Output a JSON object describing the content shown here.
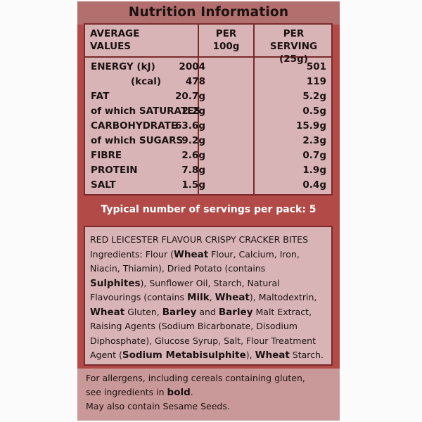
{
  "title": "Nutrition Information",
  "table": {
    "headers": {
      "average_values": [
        "AVERAGE",
        "VALUES"
      ],
      "per_100g": [
        "PER",
        "100g"
      ],
      "per_serving": [
        "PER",
        "SERVING (25g)"
      ]
    },
    "rows": [
      {
        "label": "ENERGY  (kJ)",
        "per_100g": "2004",
        "per_serving": "501"
      },
      {
        "label": "(kcal)",
        "per_100g": "478",
        "per_serving": "119"
      },
      {
        "label": "FAT",
        "per_100g": "20.7g",
        "per_serving": "5.2g"
      },
      {
        "label": "of which SATURATES",
        "per_100g": "2.2g",
        "per_serving": "0.5g"
      },
      {
        "label": "CARBOHYDRATE",
        "per_100g": "63.6g",
        "per_serving": "15.9g"
      },
      {
        "label": "of which SUGARS",
        "per_100g": "9.2g",
        "per_serving": "2.3g"
      },
      {
        "label": "FIBRE",
        "per_100g": "2.6g",
        "per_serving": "0.7g"
      },
      {
        "label": "PROTEIN",
        "per_100g": "7.8g",
        "per_serving": "1.9g"
      },
      {
        "label": "SALT",
        "per_100g": "1.5g",
        "per_serving": "0.4g"
      }
    ]
  },
  "servings_text": "Typical number of servings per pack: 5",
  "ingredients": {
    "product_name": "RED LEICESTER FLAVOUR CRISPY CRACKER BITES",
    "lines": [
      [
        "Ingredients: Flour (",
        {
          "b": "Wheat"
        },
        " Flour, Calcium, Iron,"
      ],
      [
        "Niacin, Thiamin), Dried Potato (contains"
      ],
      [
        {
          "b": "Sulphites"
        },
        "), Sunflower Oil, Starch, Natural"
      ],
      [
        "Flavourings (contains ",
        {
          "b": "Milk"
        },
        ", ",
        {
          "b": "Wheat"
        },
        "), Maltodextrin,"
      ],
      [
        {
          "b": "Wheat"
        },
        " Gluten, ",
        {
          "b": "Barley"
        },
        " and ",
        {
          "b": "Barley"
        },
        " Malt Extract,"
      ],
      [
        "Raising Agents (Sodium Bicarbonate, Disodium"
      ],
      [
        "Diphosphate), Glucose Syrup, Salt, Flour Treatment"
      ],
      [
        "Agent (",
        {
          "b": "Sodium Metabisulphite"
        },
        "), ",
        {
          "b": "Wheat"
        },
        " Starch."
      ]
    ]
  },
  "allergen": {
    "lines": [
      [
        "For allergens, including cereals containing gluten,"
      ],
      [
        "see ingredients in ",
        {
          "b": "bold"
        },
        "."
      ],
      [
        "May also contain Sesame Seeds."
      ]
    ]
  },
  "colors": {
    "panel_red": "#b24a47",
    "box_pink": "#d8b4b6",
    "border_dark": "#7a2a2a",
    "allergen_pink": "#c99898"
  }
}
